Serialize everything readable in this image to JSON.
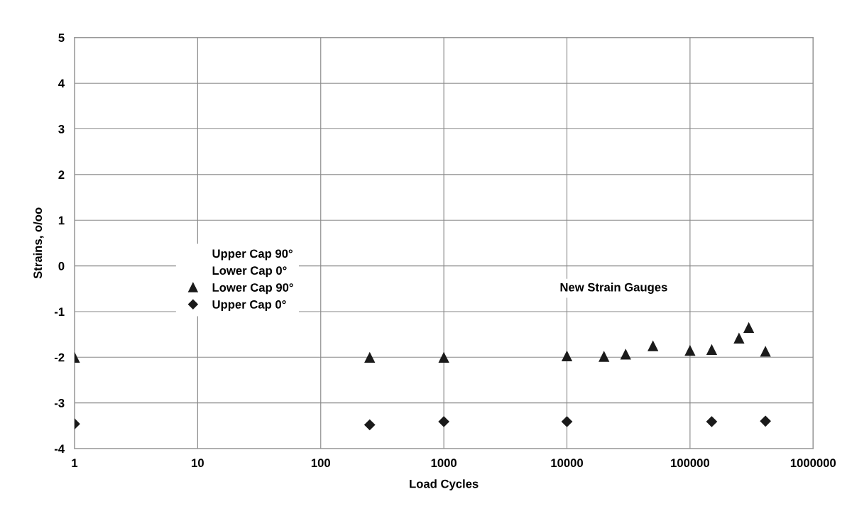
{
  "chart_data": {
    "type": "scatter",
    "xlabel": "Load Cycles",
    "ylabel": "Strains, o/oo",
    "log": "x",
    "xlim": [
      1,
      1000000
    ],
    "xticks": [
      1,
      10,
      100,
      1000,
      10000,
      100000,
      1000000
    ],
    "ylim": [
      -4,
      5
    ],
    "yticks": [
      -4,
      -3,
      -2,
      -1,
      0,
      1,
      2,
      3,
      4,
      5
    ],
    "grid": true,
    "legend": "left",
    "annotations": [
      "New Strain Gauges"
    ],
    "series": [
      {
        "name": "Upper Cap 90°",
        "color": "#1a1a1a",
        "marker": "none"
      },
      {
        "name": "Lower Cap 0°",
        "color": "#1a1a1a",
        "marker": "none"
      },
      {
        "name": "Lower Cap 90°",
        "color": "#1a1a1a",
        "marker": "triangle",
        "x": [
          1,
          250,
          1000,
          10000,
          20000,
          30000,
          50000,
          100000,
          150000,
          250000,
          300000,
          410000
        ],
        "values": [
          -2.0,
          -2.0,
          -2.0,
          -1.97,
          -1.98,
          -1.93,
          -1.75,
          -1.85,
          -1.83,
          -1.58,
          -1.35,
          -1.87
        ]
      },
      {
        "name": "Upper Cap 0°",
        "color": "#1a1a1a",
        "marker": "diamond",
        "x": [
          1,
          250,
          1000,
          10000,
          150000,
          410000
        ],
        "values": [
          -3.46,
          -3.48,
          -3.41,
          -3.41,
          -3.41,
          -3.4
        ]
      }
    ]
  }
}
